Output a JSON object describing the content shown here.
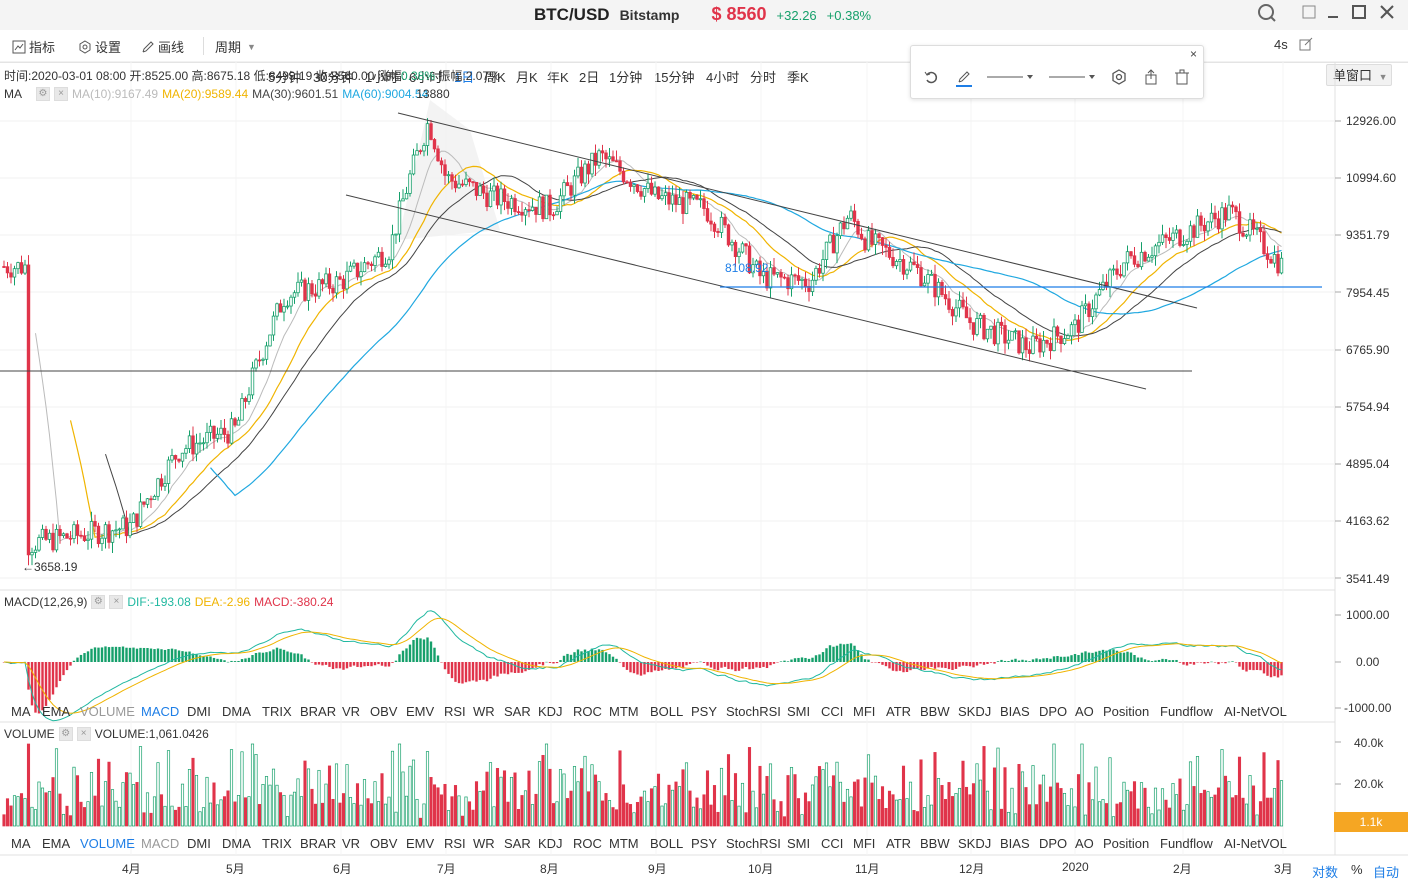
{
  "title": {
    "symbol": "BTC/USD",
    "exchange": "Bitstamp",
    "price": "$ 8560",
    "change": "+32.26",
    "change_pct": "+0.38%"
  },
  "toolbar": {
    "indicators": "指标",
    "settings": "设置",
    "draw": "画线",
    "period": "周期",
    "periods": [
      "5分钟",
      "30分钟",
      "1小时",
      "6小时",
      "1日",
      "周K",
      "月K",
      "年K",
      "2日",
      "1分钟",
      "15分钟",
      "4小时",
      "分时",
      "季K"
    ],
    "active_period": "1日",
    "refresh": "4s",
    "window_mode": "单窗口"
  },
  "info_bar": {
    "time": "时间:2020-03-01 08:00",
    "open": "开:8525.00",
    "high": "高:8675.18",
    "low": "低:8499.19",
    "close": "收:8560.00",
    "change_label": "涨幅:",
    "change_value": "0.38%",
    "amplitude": "振幅:2.07%"
  },
  "ma_legend": {
    "label": "MA",
    "ma10": "MA(10):9167.49",
    "ma20": "MA(20):9589.44",
    "ma30": "MA(30):9601.51",
    "ma60": "MA(60):9004.54",
    "overlap": "13880"
  },
  "price_axis": [
    "12926.00",
    "10994.60",
    "9351.79",
    "7954.45",
    "6765.90",
    "5754.94",
    "4895.04",
    "4163.62",
    "3541.49"
  ],
  "annotations": {
    "low_marker": "3658.19",
    "hline_value": "8108.92"
  },
  "macd_legend": {
    "label": "MACD(12,26,9)",
    "dif": "DIF:-193.08",
    "dea": "DEA:-2.96",
    "macd": "MACD:-380.24"
  },
  "macd_axis": [
    "1000.00",
    "0.00",
    "-1000.00"
  ],
  "indicator_tabs": [
    "MA",
    "EMA",
    "VOLUME",
    "MACD",
    "DMI",
    "DMA",
    "TRIX",
    "BRAR",
    "VR",
    "OBV",
    "EMV",
    "RSI",
    "WR",
    "SAR",
    "KDJ",
    "ROC",
    "MTM",
    "BOLL",
    "PSY",
    "StochRSI",
    "SMI",
    "CCI",
    "MFI",
    "ATR",
    "BBW",
    "SKDJ",
    "BIAS",
    "DPO",
    "AO",
    "Position",
    "Fundflow",
    "AI-NetVOL"
  ],
  "volume_legend": {
    "label": "VOLUME",
    "value": "VOLUME:1,061.0426"
  },
  "volume_axis": [
    "40.0k",
    "20.0k"
  ],
  "volume_tag": "1.1k",
  "x_axis": [
    "4月",
    "5月",
    "6月",
    "7月",
    "8月",
    "9月",
    "10月",
    "11月",
    "12月",
    "2020",
    "2月",
    "3月"
  ],
  "bottom_controls": {
    "log": "对数",
    "percent": "%",
    "auto": "自动"
  },
  "colors": {
    "up": "#16a06b",
    "down": "#e0344a",
    "accent": "#1e7ee6",
    "ma10": "#bbbbbb",
    "ma20": "#f0b400",
    "ma30": "#444444",
    "ma60": "#20a8e0"
  },
  "chart_data": {
    "type": "candlestick",
    "price_series": {
      "name": "BTC/USD",
      "x": [
        "2019-03",
        "2019-04",
        "2019-04-15",
        "2019-05",
        "2019-05-15",
        "2019-06",
        "2019-06-15",
        "2019-06-26",
        "2019-07",
        "2019-07-15",
        "2019-08",
        "2019-08-15",
        "2019-09",
        "2019-09-15",
        "2019-10",
        "2019-10-15",
        "2019-10-26",
        "2019-11",
        "2019-11-15",
        "2019-12",
        "2019-12-18",
        "2020-01",
        "2020-01-15",
        "2020-02",
        "2020-02-15",
        "2020-03"
      ],
      "close": [
        3900,
        4100,
        5100,
        5400,
        7900,
        8200,
        9000,
        12900,
        11000,
        10400,
        10100,
        11700,
        10400,
        10100,
        8300,
        8200,
        9900,
        9200,
        8500,
        7300,
        6800,
        7200,
        8700,
        9400,
        10000,
        8560
      ]
    },
    "macd": {
      "dif": -193.08,
      "dea": -2.96,
      "macd": -380.24
    },
    "volume_last": 1061.0426,
    "ylim_price": [
      3541.49,
      12926.0
    ]
  }
}
